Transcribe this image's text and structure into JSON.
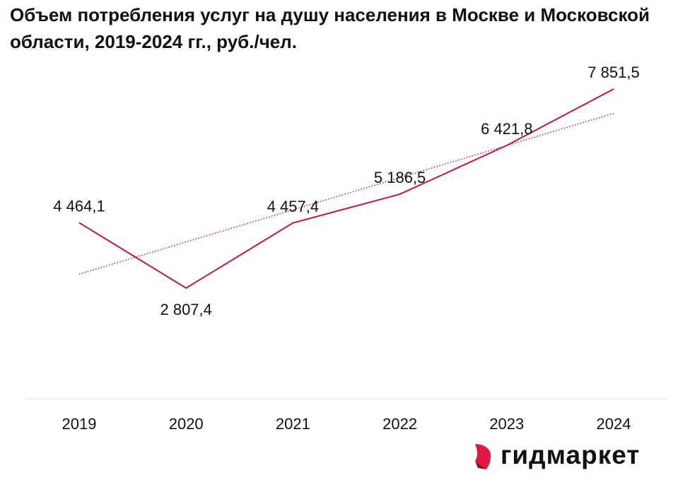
{
  "chart_data": {
    "type": "line",
    "title": "Объем потребления услуг на душу населения в Москве и Московской области, 2019-2024 гг., руб./чел.",
    "categories": [
      "2019",
      "2020",
      "2021",
      "2022",
      "2023",
      "2024"
    ],
    "series": [
      {
        "name": "Объем потребления услуг на душу населения",
        "values": [
          4464.1,
          2807.4,
          4457.4,
          5186.5,
          6421.8,
          7851.5
        ],
        "color": "#c0173f"
      }
    ],
    "data_labels": [
      "4 464,1",
      "2 807,4",
      "4 457,4",
      "5 186,5",
      "6 421,8",
      "7 851,5"
    ],
    "trendline": {
      "type": "linear",
      "style": "dotted",
      "color": "#c0173f"
    },
    "xlabel": "",
    "ylabel": "",
    "ylim": [
      0,
      8500
    ],
    "grid": false,
    "legend": "none"
  },
  "brand": {
    "name": "гидмаркет",
    "color": "#e0173f"
  }
}
